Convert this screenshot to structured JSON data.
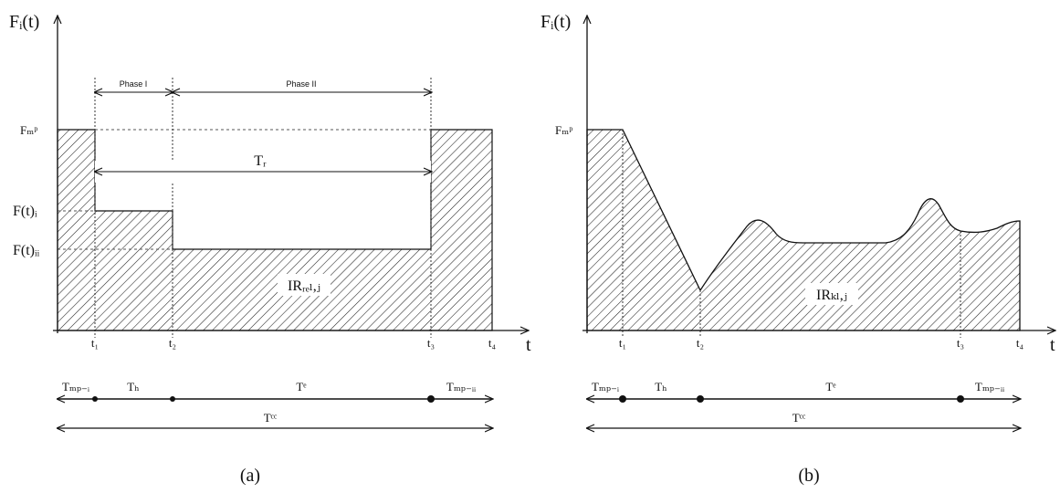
{
  "panel_a": {
    "y_axis_label": "Fᵢ(t)",
    "x_axis_label": "t",
    "y_tick_fmp": "Fₘᵖ",
    "y_tick_f1": "F(t)ᵢ",
    "y_tick_f2": "F(t)ᵢᵢ",
    "phase_1": "Phase I",
    "phase_2": "Phase II",
    "span_label": "Tᵣ",
    "region_label": "IRᵣₑₗ,ⱼ",
    "x_ticks": [
      "t₁",
      "t₂",
      "t₃",
      "t₄"
    ],
    "seg_labels": [
      "Tₘₚ₋ᵢ",
      "Tₕ",
      "Tᵉ",
      "Tₘₚ₋ᵢᵢ"
    ],
    "total_label": "Tᶜᶜ",
    "caption": "(a)"
  },
  "panel_b": {
    "y_axis_label": "Fᵢ(t)",
    "x_axis_label": "t",
    "y_tick_fmp": "Fₘᵖ",
    "region_label": "IRₖₗ,ⱼ",
    "x_ticks": [
      "t₁",
      "t₂",
      "t₃",
      "t₄"
    ],
    "seg_labels": [
      "Tₘₚ₋ᵢ",
      "Tₕ",
      "Tᵉ",
      "Tₘₚ₋ᵢᵢ"
    ],
    "total_label": "Tᶜᶜ",
    "caption": "(b)"
  }
}
